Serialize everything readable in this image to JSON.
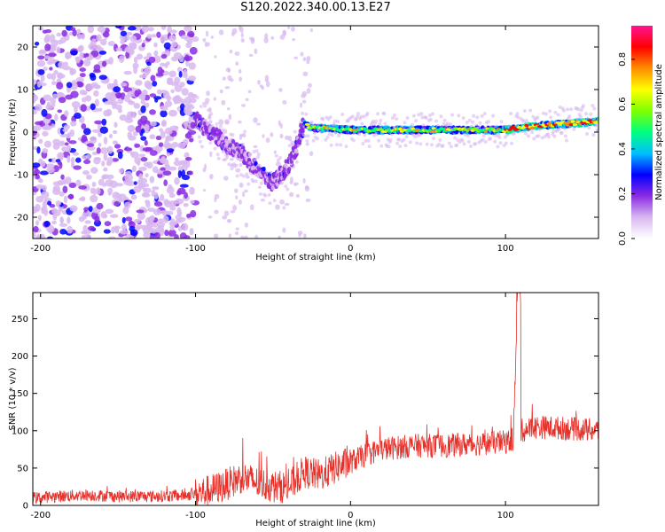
{
  "title": "S120.2022.340.00.13.E27",
  "chart_data": [
    {
      "type": "heatmap",
      "xlabel": "Height of straight line (km)",
      "ylabel": "Frequency (Hz)",
      "xlim": [
        -205,
        160
      ],
      "ylim": [
        -25,
        25
      ],
      "xticks": [
        -200,
        -100,
        0,
        100
      ],
      "yticks": [
        -20,
        -10,
        0,
        10,
        20
      ],
      "colorbar": {
        "label": "Normalized spectral amplitude",
        "range": [
          0,
          0.95
        ],
        "ticks": [
          0.0,
          0.2,
          0.4,
          0.6,
          0.8
        ],
        "colors": [
          "#ffffff",
          "#d8b8f0",
          "#8a2be2",
          "#0000ff",
          "#00bfff",
          "#00ff7f",
          "#7fff00",
          "#ffff00",
          "#ff8c00",
          "#ff0000",
          "#ff1493"
        ]
      },
      "ridge": {
        "x": [
          -100,
          -90,
          -80,
          -70,
          -60,
          -50,
          -40,
          -35,
          -30,
          -25,
          0,
          50,
          100,
          120,
          160
        ],
        "y": [
          3,
          0,
          -3,
          -5,
          -9,
          -12,
          -8,
          -4,
          2,
          1,
          0.5,
          0.5,
          0.5,
          1.5,
          2.5
        ]
      }
    },
    {
      "type": "line",
      "xlabel": "Height of straight line (km)",
      "ylabel": "SNR (10 * v/v)",
      "xlim": [
        -205,
        160
      ],
      "ylim": [
        0,
        285
      ],
      "xticks": [
        -200,
        -100,
        0,
        100
      ],
      "yticks": [
        0,
        50,
        100,
        150,
        200,
        250
      ],
      "series": [
        {
          "color": "#e8302a",
          "x": [
            -205,
            -190,
            -170,
            -150,
            -130,
            -110,
            -100,
            -90,
            -80,
            -70,
            -60,
            -50,
            -40,
            -30,
            -20,
            -10,
            0,
            10,
            20,
            40,
            60,
            80,
            100,
            105,
            108,
            110,
            120,
            140,
            160
          ],
          "y": [
            10,
            12,
            14,
            12,
            12,
            13,
            15,
            20,
            28,
            38,
            30,
            25,
            25,
            45,
            40,
            50,
            58,
            68,
            75,
            80,
            80,
            82,
            85,
            88,
            285,
            100,
            105,
            103,
            100
          ]
        }
      ]
    }
  ]
}
